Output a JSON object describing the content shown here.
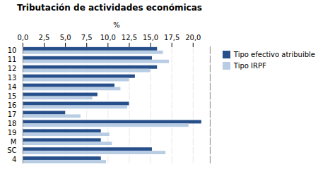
{
  "chart_data": {
    "type": "bar",
    "orientation": "horizontal",
    "title": "Tributación de actividades económicas",
    "x_label": "%",
    "categories": [
      "10",
      "11",
      "12",
      "13",
      "14",
      "15",
      "16",
      "17",
      "18",
      "19",
      "M",
      "SC",
      "4"
    ],
    "series": [
      {
        "name": "Tipo efectivo atribuible",
        "color": "#27508b",
        "values": [
          15.8,
          15.2,
          15.8,
          13.2,
          10.8,
          8.8,
          12.5,
          5.0,
          21.0,
          9.2,
          9.2,
          15.2,
          9.2
        ]
      },
      {
        "name": "Tipo IRPF",
        "color": "#b8cce4",
        "values": [
          16.5,
          17.2,
          15.0,
          12.5,
          11.5,
          8.2,
          12.3,
          6.8,
          19.5,
          10.2,
          10.5,
          16.8,
          9.8
        ]
      }
    ],
    "xlim": [
      0,
      22.0
    ],
    "xticks": [
      {
        "value": 0.0,
        "label": "0,0"
      },
      {
        "value": 2.5,
        "label": "2,5"
      },
      {
        "value": 5.0,
        "label": "5,0"
      },
      {
        "value": 7.5,
        "label": "7,5"
      },
      {
        "value": 10.0,
        "label": "10,0"
      },
      {
        "value": 12.5,
        "label": "12,5"
      },
      {
        "value": 15.0,
        "label": "15,0"
      },
      {
        "value": 17.5,
        "label": "17,5"
      },
      {
        "value": 20.0,
        "label": "20,0"
      }
    ],
    "grid": true,
    "legend": "right"
  }
}
